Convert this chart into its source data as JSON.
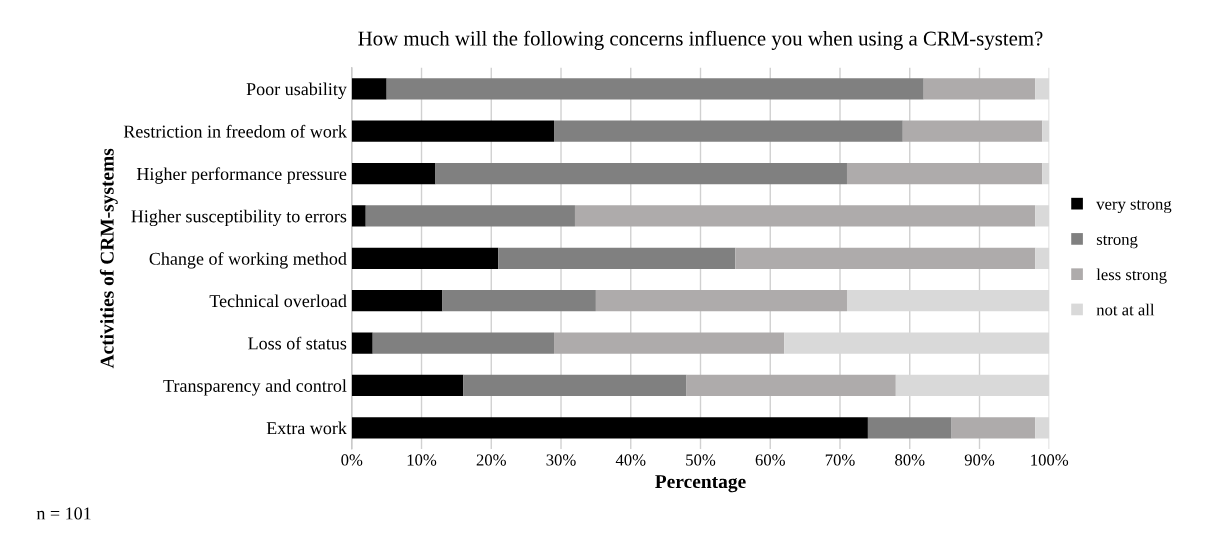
{
  "chart_data": {
    "type": "bar",
    "orientation": "horizontal",
    "stacked": true,
    "title": "How much will the following concerns influence you when using a CRM-system?",
    "xlabel": "Percentage",
    "ylabel": "Activities of CRM-systems",
    "categories": [
      "Poor usability",
      "Restriction in freedom of work",
      "Higher performance pressure",
      "Higher susceptibility to errors",
      "Change of working method",
      "Technical overload",
      "Loss of status",
      "Transparency and control",
      "Extra work"
    ],
    "series": [
      {
        "name": "very strong",
        "color": "#000000",
        "values": [
          5,
          29,
          12,
          2,
          21,
          13,
          3,
          16,
          74
        ]
      },
      {
        "name": "strong",
        "color": "#808080",
        "values": [
          77,
          50,
          59,
          30,
          34,
          22,
          26,
          32,
          12
        ]
      },
      {
        "name": "less strong",
        "color": "#aeabab",
        "values": [
          16,
          20,
          28,
          66,
          43,
          36,
          33,
          30,
          12
        ]
      },
      {
        "name": "not at all",
        "color": "#d9d9d9",
        "values": [
          2,
          1,
          1,
          2,
          2,
          29,
          38,
          22,
          2
        ]
      }
    ],
    "xlim": [
      0,
      100
    ],
    "xticks": [
      {
        "value": 0,
        "label": "0%"
      },
      {
        "value": 10,
        "label": "10%"
      },
      {
        "value": 20,
        "label": "20%"
      },
      {
        "value": 30,
        "label": "30%"
      },
      {
        "value": 40,
        "label": "40%"
      },
      {
        "value": 50,
        "label": "50%"
      },
      {
        "value": 60,
        "label": "60%"
      },
      {
        "value": 70,
        "label": "70%"
      },
      {
        "value": 80,
        "label": "80%"
      },
      {
        "value": 90,
        "label": "90%"
      },
      {
        "value": 100,
        "label": "100%"
      }
    ],
    "grid": "x",
    "legend": "right",
    "annotations": [
      "n = 101"
    ]
  }
}
